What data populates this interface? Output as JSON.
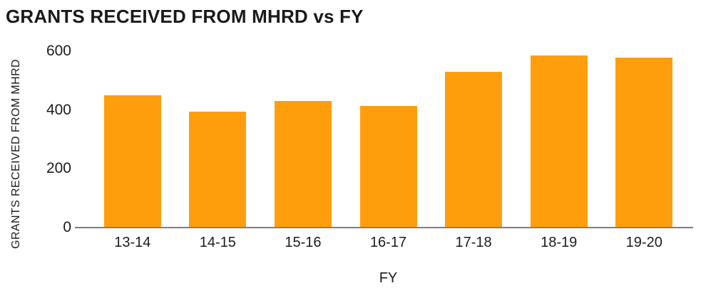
{
  "chart_data": {
    "type": "bar",
    "title": "GRANTS RECEIVED FROM MHRD vs FY",
    "xlabel": "FY",
    "ylabel": "GRANTS RECEIVED FROM MHRD",
    "categories": [
      "13-14",
      "14-15",
      "15-16",
      "16-17",
      "17-18",
      "18-19",
      "19-20"
    ],
    "values": [
      450,
      395,
      430,
      413,
      530,
      585,
      578
    ],
    "yticks": [
      0,
      200,
      400,
      600
    ],
    "ylim": [
      0,
      600
    ],
    "grid": false,
    "legend": false,
    "colors": {
      "bar": "#FF9E0D",
      "axis_line": "#7F7F7F",
      "text": "#1C1C1C",
      "background": "#FFFFFF"
    }
  }
}
